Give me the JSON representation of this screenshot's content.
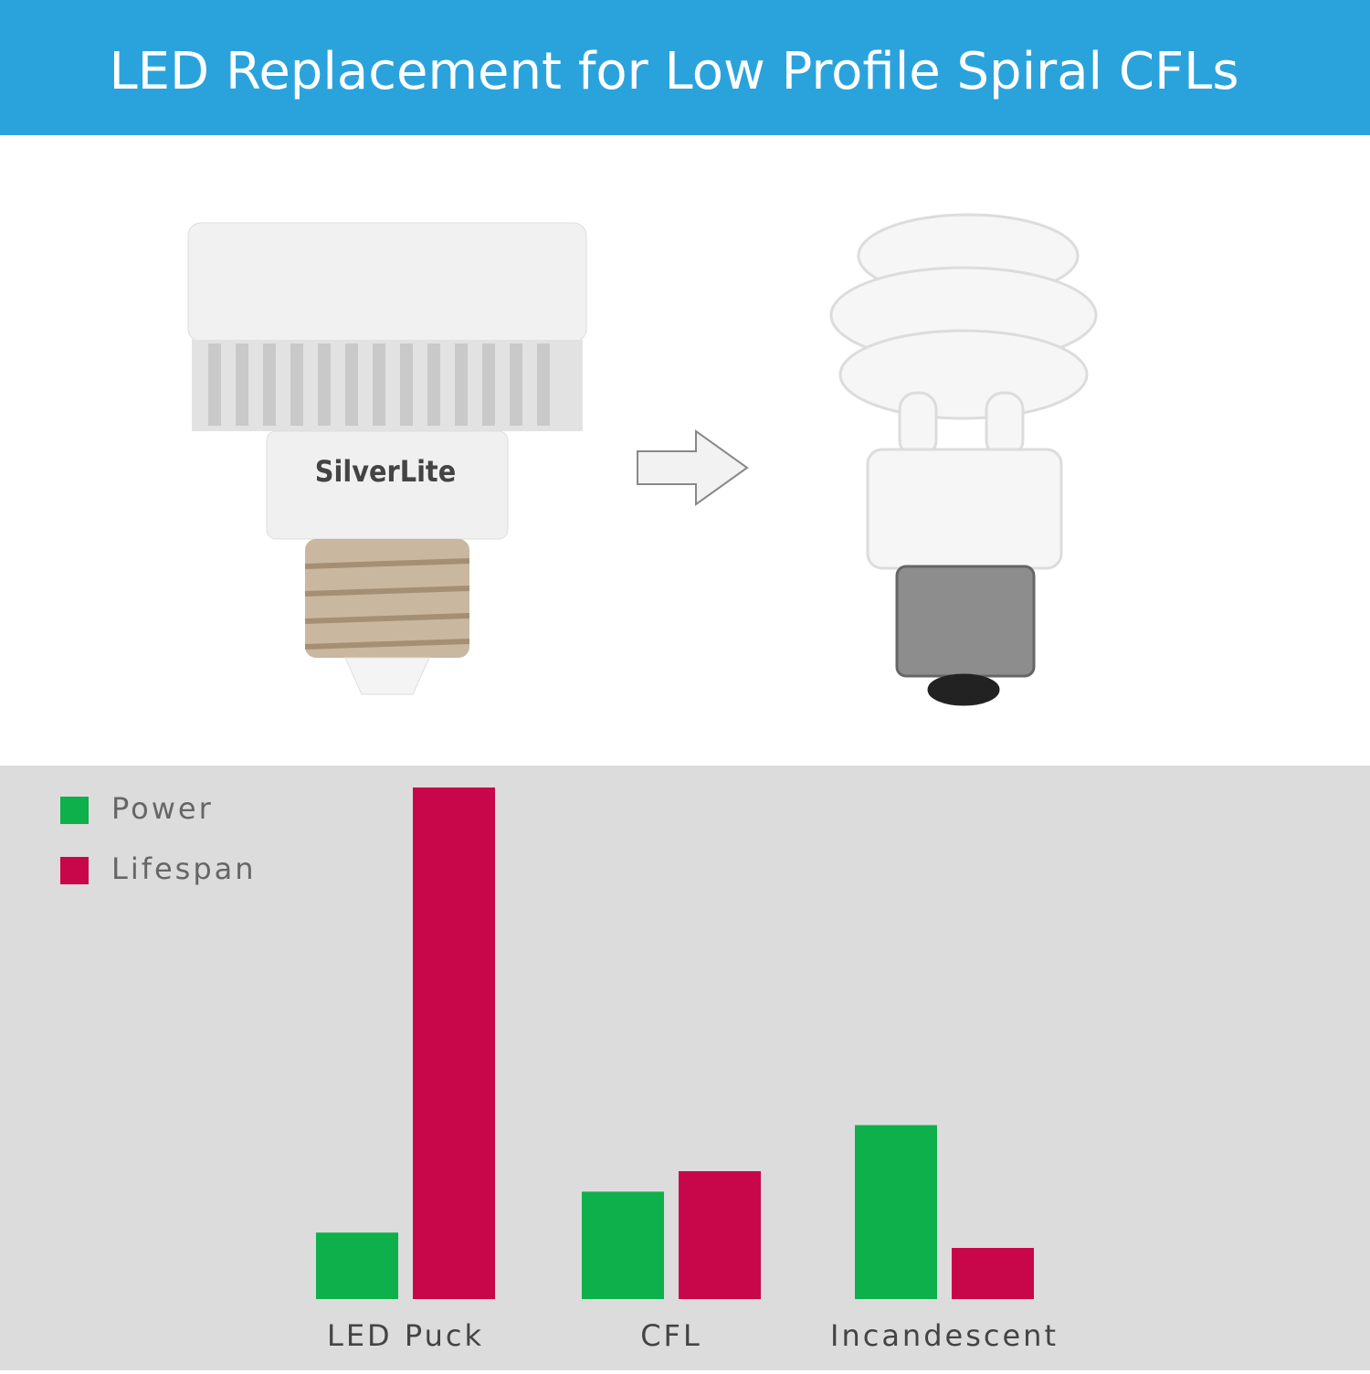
{
  "header": {
    "title": "LED Replacement for Low Profile Spiral CFLs"
  },
  "product_label": "SilverLite",
  "chart_data": {
    "type": "bar",
    "categories": [
      "LED Puck",
      "CFL",
      "Incandescent"
    ],
    "series": [
      {
        "name": "Power",
        "color": "#0db04b",
        "values": [
          13,
          21,
          34
        ]
      },
      {
        "name": "Lifespan",
        "color": "#c8074a",
        "values": [
          100,
          25,
          10
        ]
      }
    ],
    "legend": "upper-left"
  }
}
